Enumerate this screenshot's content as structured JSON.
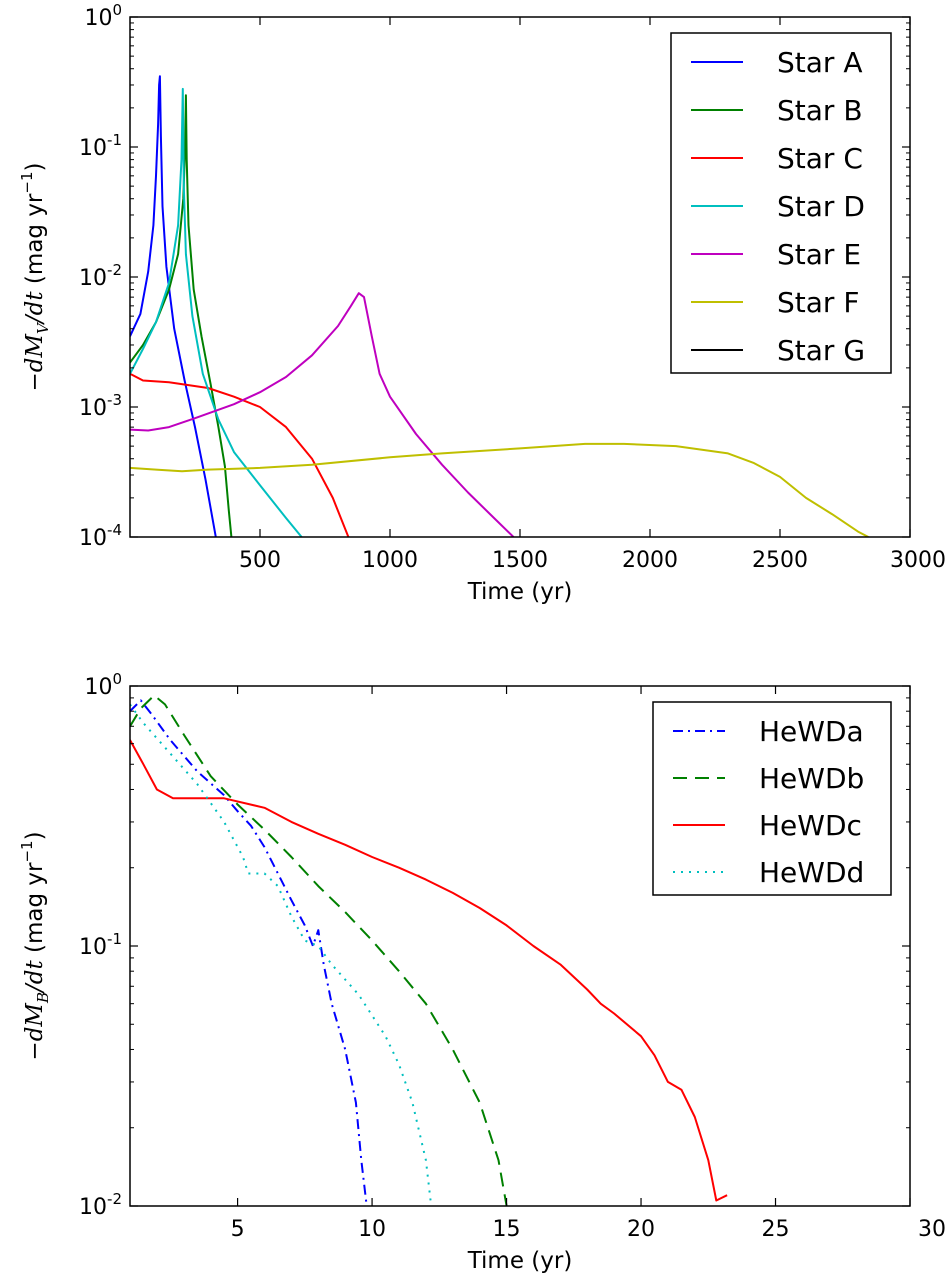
{
  "chart_data": [
    {
      "type": "line",
      "xlabel": "Time (yr)",
      "ylabel_parts": {
        "prefix": "−dM",
        "sub": "V",
        "mid": "/dt",
        "unit": " (mag yr",
        "exp": "−1",
        "close": ")"
      },
      "xlim": [
        0,
        3000
      ],
      "ylim": [
        0.0001,
        1
      ],
      "yscale": "log",
      "x_ticks": [
        500,
        1000,
        1500,
        2000,
        2500,
        3000
      ],
      "x_tick_labels": [
        "500",
        "1000",
        "1500",
        "2000",
        "2500",
        "3000"
      ],
      "y_ticks": [
        0.0001,
        0.001,
        0.01,
        0.1,
        1
      ],
      "y_tick_labels": [
        {
          "base": "10",
          "exp": "-4"
        },
        {
          "base": "10",
          "exp": "-3"
        },
        {
          "base": "10",
          "exp": "-2"
        },
        {
          "base": "10",
          "exp": "-1"
        },
        {
          "base": "10",
          "exp": "0"
        }
      ],
      "grid": false,
      "legend_position": "top-right",
      "series": [
        {
          "name": "Star A",
          "color": "#0000ff",
          "style": "solid",
          "points": [
            [
              0,
              0.0035
            ],
            [
              40,
              0.0052
            ],
            [
              70,
              0.011
            ],
            [
              90,
              0.025
            ],
            [
              100,
              0.06
            ],
            [
              108,
              0.15
            ],
            [
              112,
              0.3
            ],
            [
              115,
              0.35
            ],
            [
              119,
              0.12
            ],
            [
              125,
              0.035
            ],
            [
              140,
              0.012
            ],
            [
              170,
              0.004
            ],
            [
              210,
              0.0016
            ],
            [
              250,
              0.0007
            ],
            [
              290,
              0.00028
            ],
            [
              330,
              0.0001
            ]
          ]
        },
        {
          "name": "Star B",
          "color": "#008000",
          "style": "solid",
          "points": [
            [
              0,
              0.0022
            ],
            [
              50,
              0.003
            ],
            [
              100,
              0.0045
            ],
            [
              150,
              0.008
            ],
            [
              185,
              0.015
            ],
            [
              205,
              0.04
            ],
            [
              212,
              0.1
            ],
            [
              215,
              0.25
            ],
            [
              218,
              0.08
            ],
            [
              225,
              0.025
            ],
            [
              245,
              0.008
            ],
            [
              275,
              0.0035
            ],
            [
              310,
              0.0015
            ],
            [
              340,
              0.0007
            ],
            [
              365,
              0.00035
            ],
            [
              380,
              0.00016
            ],
            [
              390,
              0.0001
            ]
          ]
        },
        {
          "name": "Star C",
          "color": "#ff0000",
          "style": "solid",
          "points": [
            [
              0,
              0.0018
            ],
            [
              50,
              0.0016
            ],
            [
              150,
              0.00155
            ],
            [
              300,
              0.0014
            ],
            [
              400,
              0.0012
            ],
            [
              500,
              0.001
            ],
            [
              600,
              0.0007
            ],
            [
              700,
              0.0004
            ],
            [
              780,
              0.0002
            ],
            [
              840,
              0.0001
            ]
          ]
        },
        {
          "name": "Star D",
          "color": "#00bfbf",
          "style": "solid",
          "points": [
            [
              0,
              0.0018
            ],
            [
              50,
              0.0028
            ],
            [
              100,
              0.0045
            ],
            [
              150,
              0.009
            ],
            [
              185,
              0.025
            ],
            [
              198,
              0.08
            ],
            [
              203,
              0.28
            ],
            [
              207,
              0.05
            ],
            [
              215,
              0.015
            ],
            [
              240,
              0.005
            ],
            [
              280,
              0.0018
            ],
            [
              340,
              0.0008
            ],
            [
              400,
              0.00045
            ],
            [
              500,
              0.00025
            ],
            [
              600,
              0.00014
            ],
            [
              660,
              0.0001
            ]
          ]
        },
        {
          "name": "Star E",
          "color": "#bf00bf",
          "style": "solid",
          "points": [
            [
              0,
              0.00067
            ],
            [
              70,
              0.00066
            ],
            [
              150,
              0.0007
            ],
            [
              250,
              0.00082
            ],
            [
              400,
              0.00105
            ],
            [
              500,
              0.0013
            ],
            [
              600,
              0.0017
            ],
            [
              700,
              0.0025
            ],
            [
              800,
              0.0042
            ],
            [
              850,
              0.006
            ],
            [
              880,
              0.0075
            ],
            [
              900,
              0.007
            ],
            [
              930,
              0.0035
            ],
            [
              960,
              0.0018
            ],
            [
              1000,
              0.0012
            ],
            [
              1100,
              0.00062
            ],
            [
              1200,
              0.00036
            ],
            [
              1300,
              0.00022
            ],
            [
              1400,
              0.00014
            ],
            [
              1475,
              0.0001
            ]
          ]
        },
        {
          "name": "Star F",
          "color": "#bfbf00",
          "style": "solid",
          "points": [
            [
              0,
              0.00034
            ],
            [
              100,
              0.00033
            ],
            [
              200,
              0.00032
            ],
            [
              300,
              0.00033
            ],
            [
              500,
              0.00034
            ],
            [
              700,
              0.00036
            ],
            [
              1000,
              0.00041
            ],
            [
              1200,
              0.00044
            ],
            [
              1500,
              0.00048
            ],
            [
              1750,
              0.00052
            ],
            [
              1900,
              0.00052
            ],
            [
              2100,
              0.0005
            ],
            [
              2300,
              0.00044
            ],
            [
              2400,
              0.00037
            ],
            [
              2500,
              0.00029
            ],
            [
              2600,
              0.0002
            ],
            [
              2700,
              0.00015
            ],
            [
              2800,
              0.00011
            ],
            [
              2840,
              0.0001
            ]
          ]
        },
        {
          "name": "Star G",
          "color": "#000000",
          "style": "solid",
          "points": []
        }
      ]
    },
    {
      "type": "line",
      "xlabel": "Time (yr)",
      "ylabel_parts": {
        "prefix": "−dM",
        "sub": "B",
        "mid": "/dt",
        "unit": " (mag yr",
        "exp": "−1",
        "close": ")"
      },
      "xlim": [
        1,
        30
      ],
      "ylim": [
        0.01,
        1
      ],
      "yscale": "log",
      "x_ticks": [
        5,
        10,
        15,
        20,
        25,
        30
      ],
      "x_tick_labels": [
        "5",
        "10",
        "15",
        "20",
        "25",
        "30"
      ],
      "y_ticks": [
        0.01,
        0.1,
        1
      ],
      "y_tick_labels": [
        {
          "base": "10",
          "exp": "-2"
        },
        {
          "base": "10",
          "exp": "-1"
        },
        {
          "base": "10",
          "exp": "0"
        }
      ],
      "grid": false,
      "legend_position": "top-right",
      "series": [
        {
          "name": "HeWDa",
          "color": "#0000ff",
          "style": "dashdot",
          "points": [
            [
              1,
              0.8
            ],
            [
              1.4,
              0.88
            ],
            [
              1.8,
              0.78
            ],
            [
              2.5,
              0.62
            ],
            [
              3.5,
              0.47
            ],
            [
              4.5,
              0.38
            ],
            [
              5,
              0.33
            ],
            [
              5.5,
              0.29
            ],
            [
              6,
              0.24
            ],
            [
              6.5,
              0.19
            ],
            [
              7,
              0.15
            ],
            [
              7.5,
              0.12
            ],
            [
              7.8,
              0.1
            ],
            [
              8,
              0.115
            ],
            [
              8.2,
              0.085
            ],
            [
              8.5,
              0.06
            ],
            [
              9,
              0.04
            ],
            [
              9.4,
              0.025
            ],
            [
              9.6,
              0.015
            ],
            [
              9.8,
              0.01
            ]
          ]
        },
        {
          "name": "HeWDb",
          "color": "#008000",
          "style": "dashed",
          "points": [
            [
              1,
              0.7
            ],
            [
              1.4,
              0.82
            ],
            [
              1.9,
              0.92
            ],
            [
              2.3,
              0.85
            ],
            [
              3,
              0.65
            ],
            [
              4,
              0.45
            ],
            [
              5,
              0.35
            ],
            [
              6,
              0.28
            ],
            [
              7,
              0.22
            ],
            [
              8,
              0.17
            ],
            [
              9,
              0.135
            ],
            [
              10,
              0.105
            ],
            [
              11,
              0.08
            ],
            [
              12,
              0.06
            ],
            [
              13,
              0.04
            ],
            [
              14,
              0.025
            ],
            [
              14.7,
              0.015
            ],
            [
              15,
              0.01
            ]
          ]
        },
        {
          "name": "HeWDc",
          "color": "#ff0000",
          "style": "solid",
          "points": [
            [
              1,
              0.62
            ],
            [
              1.5,
              0.5
            ],
            [
              2,
              0.4
            ],
            [
              2.6,
              0.37
            ],
            [
              3.5,
              0.37
            ],
            [
              4.5,
              0.37
            ],
            [
              6,
              0.34
            ],
            [
              7,
              0.3
            ],
            [
              8,
              0.27
            ],
            [
              9,
              0.245
            ],
            [
              10,
              0.22
            ],
            [
              11,
              0.2
            ],
            [
              12,
              0.18
            ],
            [
              13,
              0.16
            ],
            [
              14,
              0.14
            ],
            [
              15,
              0.12
            ],
            [
              16,
              0.1
            ],
            [
              17,
              0.085
            ],
            [
              18,
              0.068
            ],
            [
              18.5,
              0.06
            ],
            [
              19,
              0.055
            ],
            [
              20,
              0.045
            ],
            [
              20.5,
              0.038
            ],
            [
              21,
              0.03
            ],
            [
              21.5,
              0.028
            ],
            [
              22,
              0.022
            ],
            [
              22.5,
              0.015
            ],
            [
              22.8,
              0.0105
            ],
            [
              23.2,
              0.011
            ]
          ]
        },
        {
          "name": "HeWDd",
          "color": "#00bfbf",
          "style": "dotted",
          "points": [
            [
              1,
              0.85
            ],
            [
              1.5,
              0.72
            ],
            [
              2.5,
              0.55
            ],
            [
              3.5,
              0.42
            ],
            [
              4.5,
              0.3
            ],
            [
              5.2,
              0.22
            ],
            [
              5.4,
              0.19
            ],
            [
              6,
              0.19
            ],
            [
              6.5,
              0.17
            ],
            [
              7,
              0.13
            ],
            [
              7.5,
              0.105
            ],
            [
              8,
              0.1
            ],
            [
              8.5,
              0.085
            ],
            [
              9.5,
              0.065
            ],
            [
              10.5,
              0.045
            ],
            [
              11,
              0.035
            ],
            [
              11.5,
              0.025
            ],
            [
              12,
              0.015
            ],
            [
              12.2,
              0.01
            ]
          ]
        }
      ]
    }
  ]
}
